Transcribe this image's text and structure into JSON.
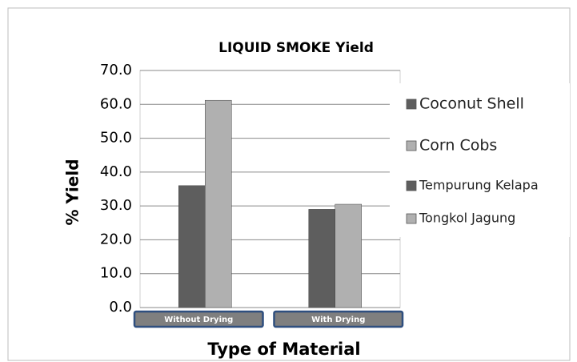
{
  "chart_data": {
    "type": "bar",
    "title": "LIQUID SMOKE Yield",
    "x_label": "Type of Material",
    "y_label": "% Yield",
    "categories": [
      "Without Drying",
      "With Drying"
    ],
    "series": [
      {
        "name": "Coconut Shell",
        "color": "#5e5e5e",
        "values": [
          36.0,
          29.0
        ]
      },
      {
        "name": "Corn Cobs",
        "color": "#b0b0b0",
        "values": [
          61.2,
          30.5
        ]
      }
    ],
    "extra_legend": [
      {
        "name": "Tempurung Kelapa",
        "color": "#5e5e5e"
      },
      {
        "name": "Tongkol Jagung",
        "color": "#b0b0b0"
      }
    ],
    "ylim": [
      0,
      70
    ],
    "yticks": [
      {
        "value": 0,
        "label": "0.0"
      },
      {
        "value": 10,
        "label": "10.0"
      },
      {
        "value": 20,
        "label": "20.0"
      },
      {
        "value": 30,
        "label": "30.0"
      },
      {
        "value": 40,
        "label": "40.0"
      },
      {
        "value": 50,
        "label": "50.0"
      },
      {
        "value": 60,
        "label": "60.0"
      },
      {
        "value": 70,
        "label": "70.0"
      }
    ],
    "grid": true
  }
}
